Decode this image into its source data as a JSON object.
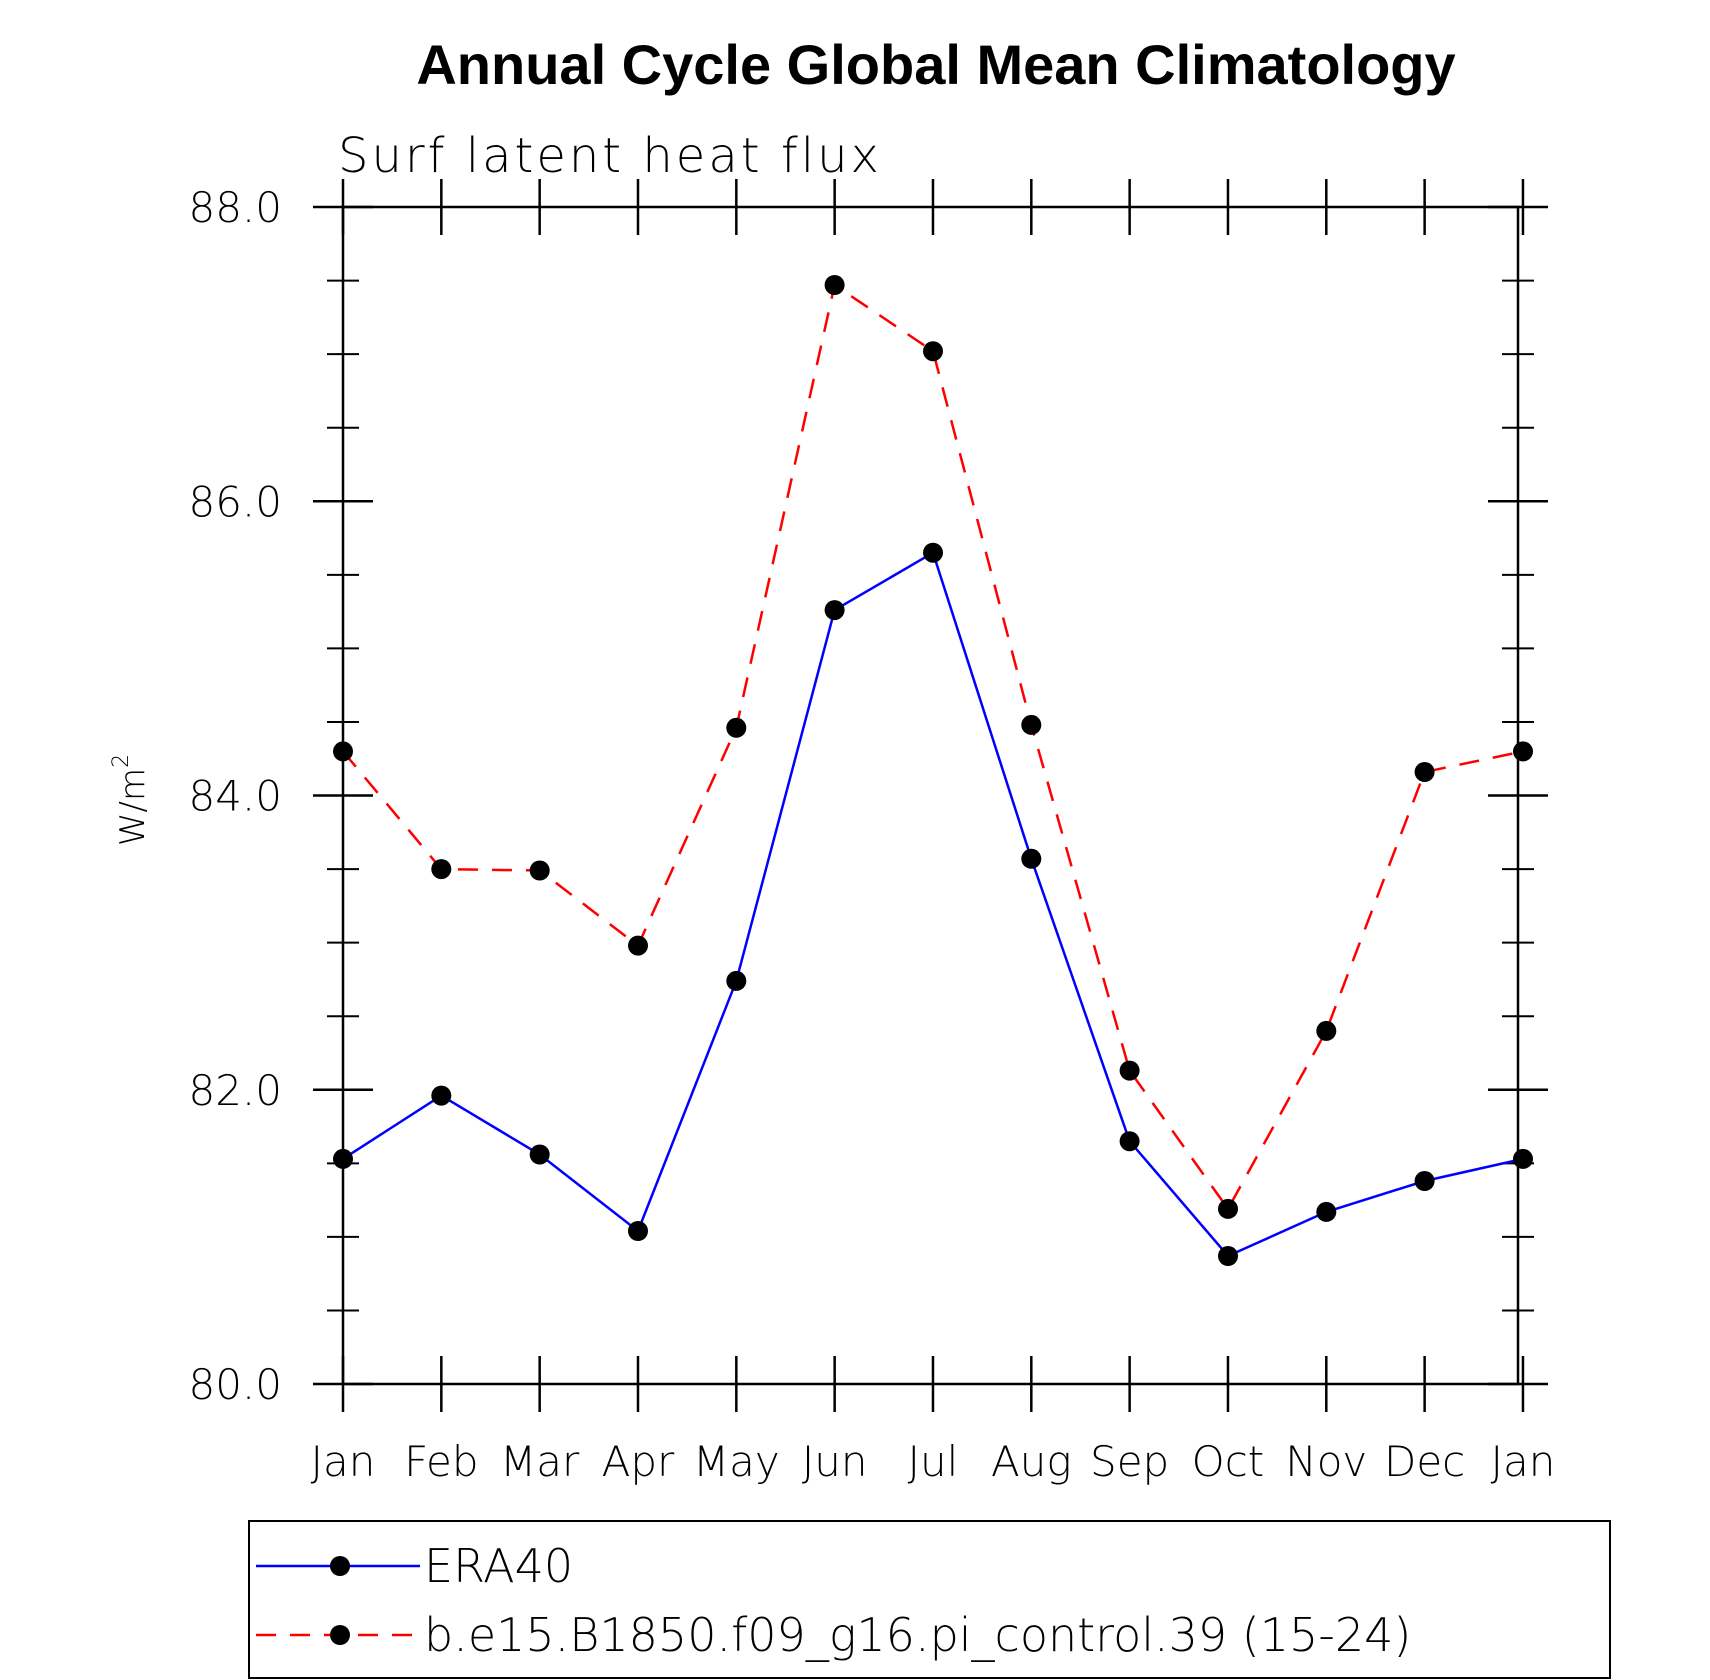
{
  "chart_data": {
    "type": "line",
    "title": "Annual Cycle Global Mean Climatology",
    "subtitle": "Surf latent heat flux",
    "ylabel": "W/m",
    "ylabel_superscript": "2",
    "xlabel": "",
    "categories": [
      "Jan",
      "Feb",
      "Mar",
      "Apr",
      "May",
      "Jun",
      "Jul",
      "Aug",
      "Sep",
      "Oct",
      "Nov",
      "Dec",
      "Jan"
    ],
    "ylim": [
      80.0,
      88.0
    ],
    "yticks": [
      80.0,
      82.0,
      84.0,
      86.0,
      88.0
    ],
    "ytick_labels": [
      "80.0",
      "82.0",
      "84.0",
      "86.0",
      "88.0"
    ],
    "yminor_step": 0.5,
    "grid": false,
    "legend_position": "bottom",
    "series": [
      {
        "name": "ERA40",
        "color": "#0000ff",
        "dash": "solid",
        "marker": "circle",
        "values": [
          81.53,
          81.96,
          81.56,
          81.04,
          82.74,
          85.26,
          85.65,
          83.57,
          81.65,
          80.87,
          81.17,
          81.38,
          81.53
        ]
      },
      {
        "name": "b.e15.B1850.f09_g16.pi_control.39 (15-24)",
        "color": "#ff0000",
        "dash": "dashed",
        "marker": "circle",
        "values": [
          84.3,
          83.5,
          83.49,
          82.98,
          84.46,
          87.47,
          87.02,
          84.48,
          82.13,
          81.19,
          82.4,
          84.16,
          84.3
        ]
      }
    ]
  }
}
